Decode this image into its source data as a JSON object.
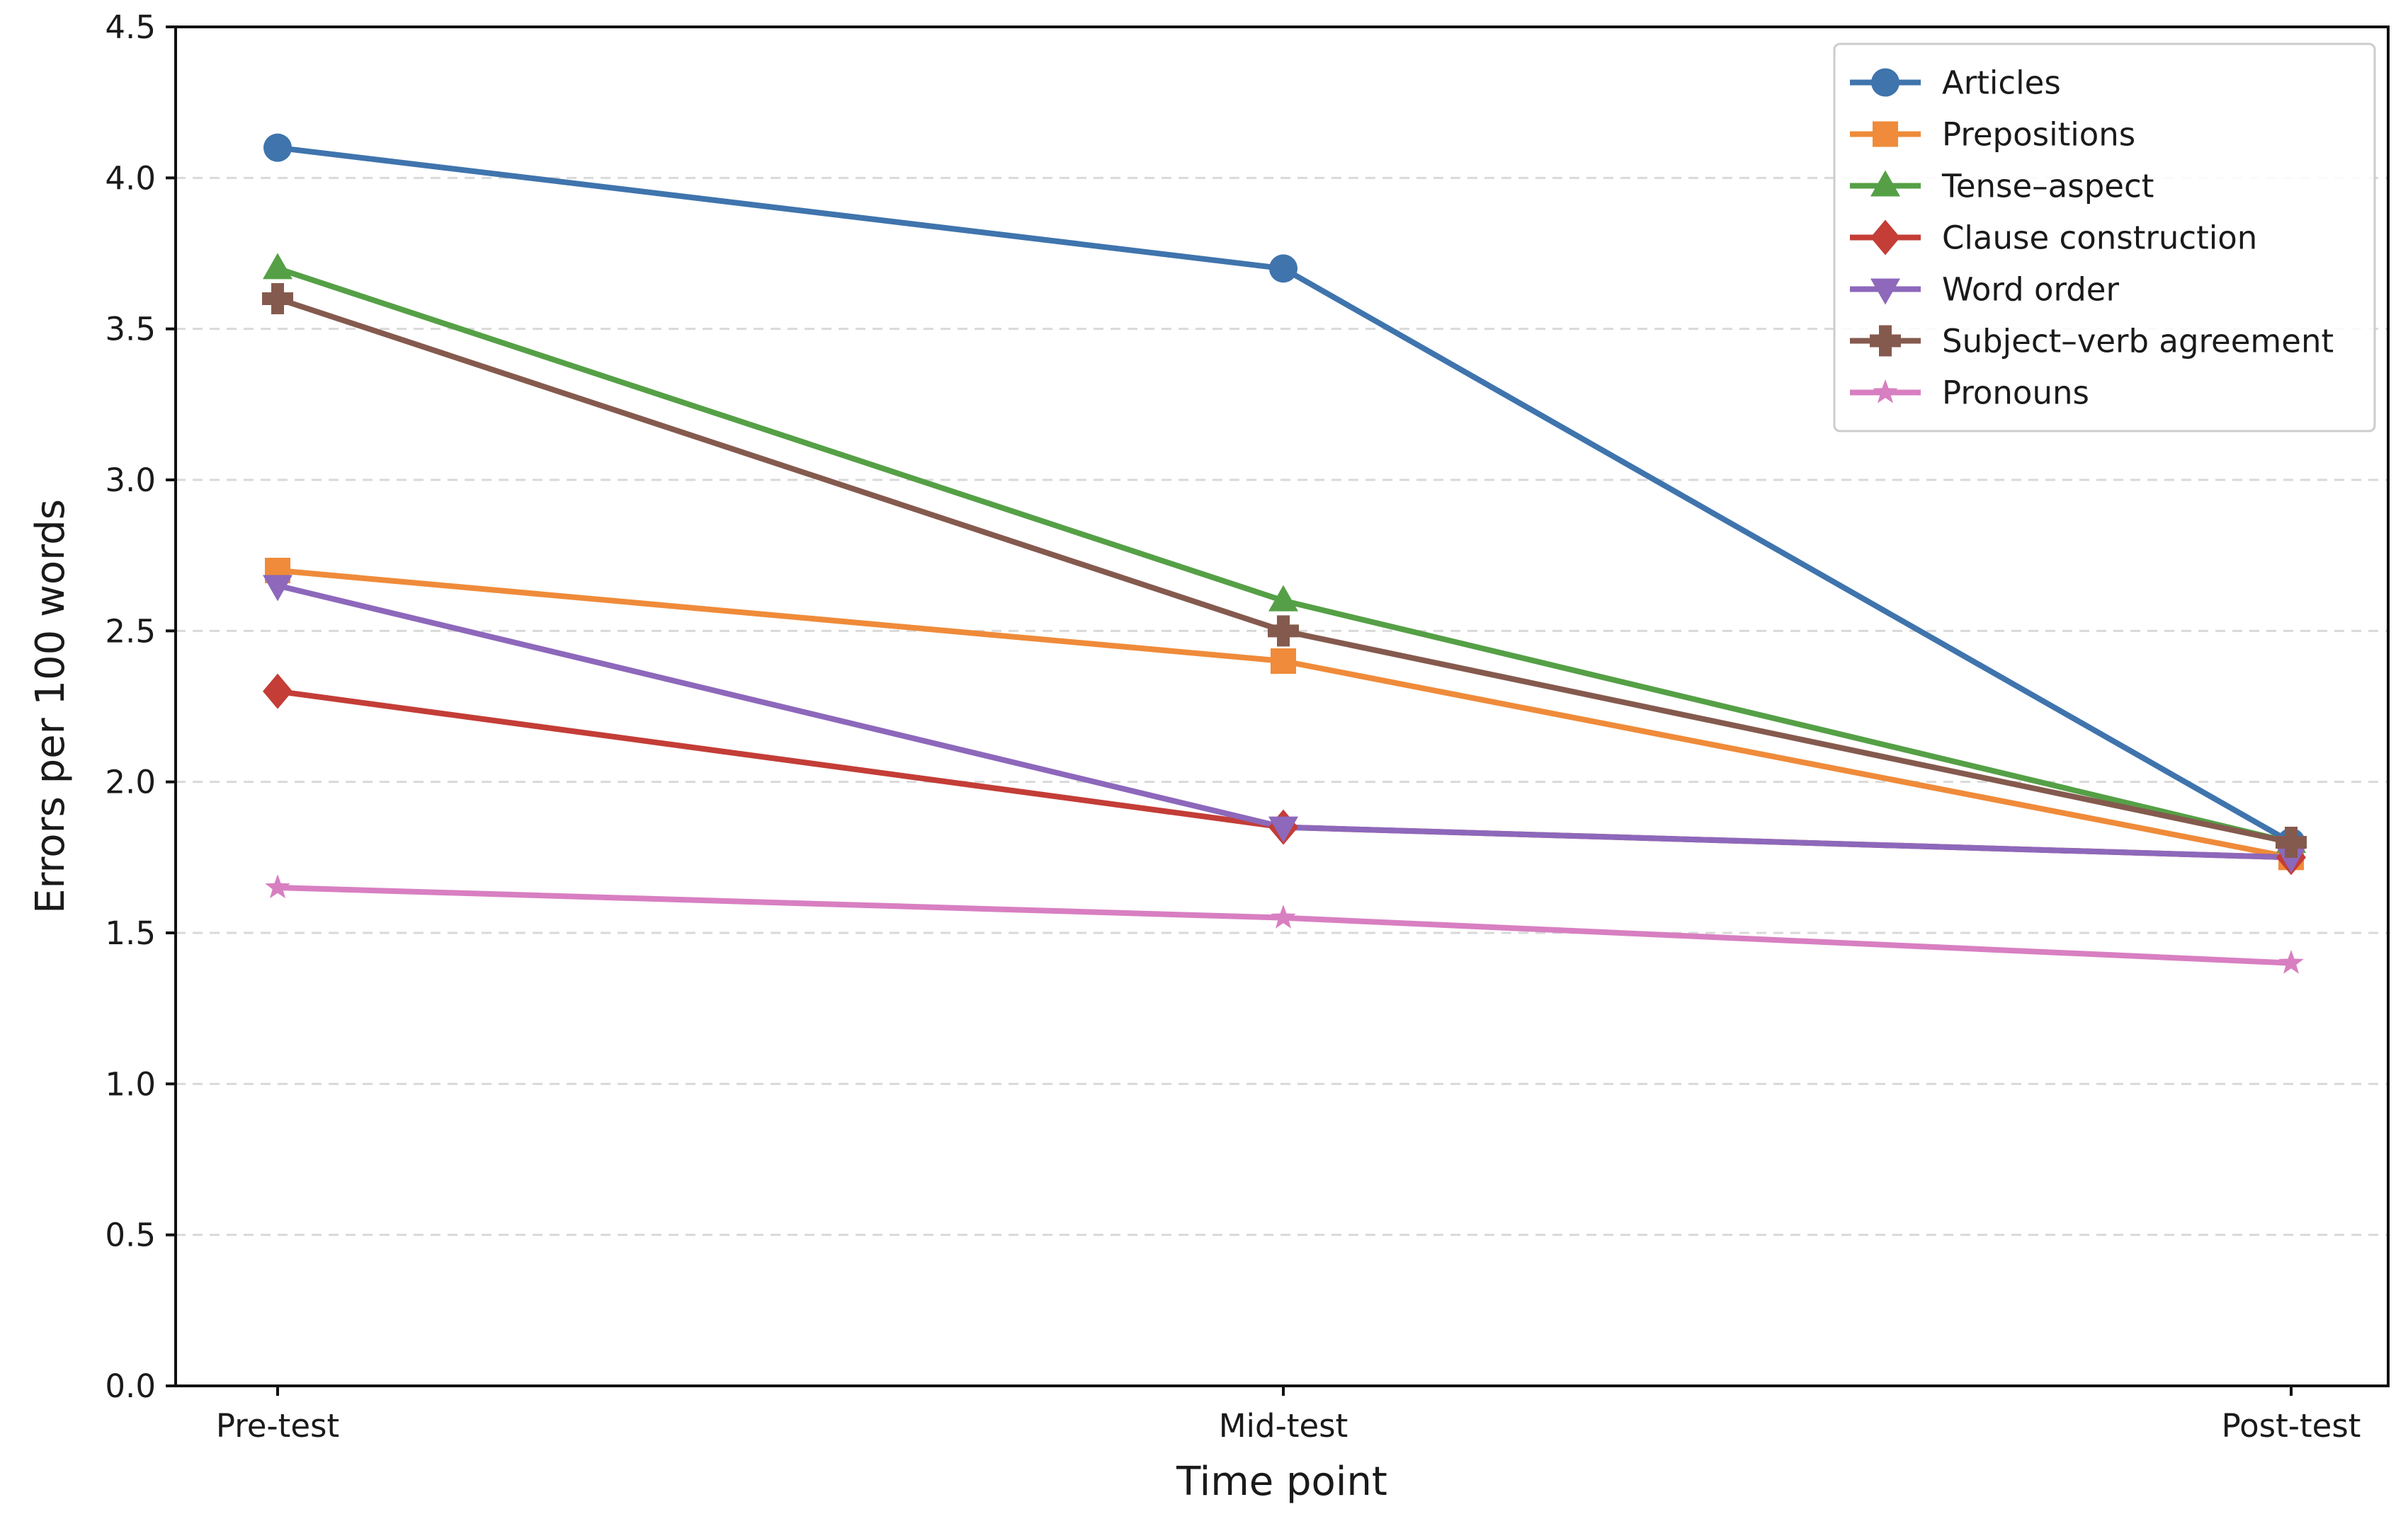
{
  "chart_data": {
    "type": "line",
    "title": "",
    "xlabel": "Time point",
    "ylabel": "Errors per 100 words",
    "categories": [
      "Pre-test",
      "Mid-test",
      "Post-test"
    ],
    "ylim": [
      0,
      4.5
    ],
    "yticks": [
      "0.0",
      "0.5",
      "1.0",
      "1.5",
      "2.0",
      "2.5",
      "3.0",
      "3.5",
      "4.0",
      "4.5"
    ],
    "grid": "horizontal dashed",
    "legend_position": "top-right",
    "series": [
      {
        "name": "Articles",
        "values": [
          4.1,
          3.7,
          1.8
        ],
        "color": "#3f74ad",
        "marker": "circle"
      },
      {
        "name": "Prepositions",
        "values": [
          2.7,
          2.4,
          1.75
        ],
        "color": "#ef8b3a",
        "marker": "square"
      },
      {
        "name": "Tense–aspect",
        "values": [
          3.7,
          2.6,
          1.8
        ],
        "color": "#55a046",
        "marker": "triangle-up"
      },
      {
        "name": "Clause construction",
        "values": [
          2.3,
          1.85,
          1.75
        ],
        "color": "#c43d37",
        "marker": "diamond"
      },
      {
        "name": "Word order",
        "values": [
          2.65,
          1.85,
          1.75
        ],
        "color": "#8d68bb",
        "marker": "triangle-down"
      },
      {
        "name": "Subject–verb agreement",
        "values": [
          3.6,
          2.5,
          1.8
        ],
        "color": "#855a4e",
        "marker": "plus"
      },
      {
        "name": "Pronouns",
        "values": [
          1.65,
          1.55,
          1.4
        ],
        "color": "#d87fc1",
        "marker": "star"
      }
    ]
  }
}
